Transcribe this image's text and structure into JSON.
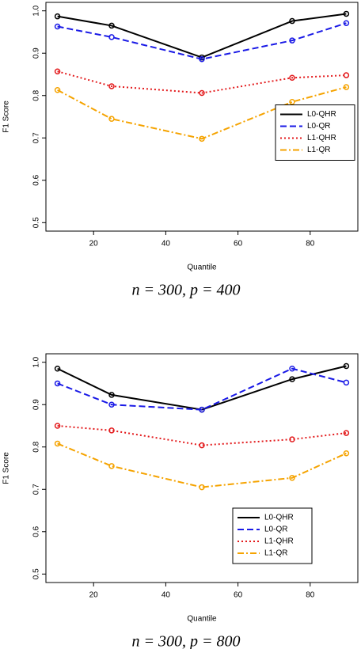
{
  "chart_data": [
    {
      "type": "line",
      "xlabel": "Quantile",
      "ylabel": "F1 Score",
      "caption": "n = 300, p = 400",
      "x": [
        10,
        25,
        50,
        75,
        90
      ],
      "xlim": [
        6.8,
        93.2
      ],
      "xticks": [
        20,
        40,
        60,
        80
      ],
      "ylim": [
        0.48,
        1.02
      ],
      "yticks": [
        0.5,
        0.6,
        0.7,
        0.8,
        0.9,
        {
          "value": 1,
          "label": "1.0"
        }
      ],
      "legend": "right",
      "series": [
        {
          "name": "L0-QHR",
          "color": "#000000",
          "dash": "solid",
          "values": [
            0.987,
            0.965,
            0.89,
            0.976,
            0.993
          ]
        },
        {
          "name": "L0-QR",
          "color": "#1a1ae6",
          "dash": "dashed",
          "values": [
            0.963,
            0.938,
            0.886,
            0.93,
            0.971
          ]
        },
        {
          "name": "L1-QHR",
          "color": "#e31a1c",
          "dash": "dotted",
          "values": [
            0.857,
            0.822,
            0.806,
            0.842,
            0.848
          ]
        },
        {
          "name": "L1-QR",
          "color": "#f5a300",
          "dash": "dashdot",
          "values": [
            0.813,
            0.745,
            0.698,
            0.785,
            0.82
          ]
        }
      ]
    },
    {
      "type": "line",
      "xlabel": "Quantile",
      "ylabel": "F1 Score",
      "caption": "n = 300, p = 800",
      "x": [
        10,
        25,
        50,
        75,
        90
      ],
      "xlim": [
        6.8,
        93.2
      ],
      "xticks": [
        20,
        40,
        60,
        80
      ],
      "ylim": [
        0.48,
        1.02
      ],
      "yticks": [
        0.5,
        0.6,
        0.7,
        0.8,
        0.9,
        {
          "value": 1,
          "label": "1.0"
        }
      ],
      "legend": "bottom right",
      "series": [
        {
          "name": "L0-QHR",
          "color": "#000000",
          "dash": "solid",
          "values": [
            0.985,
            0.923,
            0.888,
            0.96,
            0.991
          ]
        },
        {
          "name": "L0-QR",
          "color": "#1a1ae6",
          "dash": "dashed",
          "values": [
            0.95,
            0.9,
            0.888,
            0.985,
            0.952
          ]
        },
        {
          "name": "L1-QHR",
          "color": "#e31a1c",
          "dash": "dotted",
          "values": [
            0.85,
            0.839,
            0.804,
            0.818,
            0.833
          ]
        },
        {
          "name": "L1-QR",
          "color": "#f5a300",
          "dash": "dashdot",
          "values": [
            0.808,
            0.755,
            0.705,
            0.727,
            0.785
          ]
        }
      ]
    }
  ]
}
